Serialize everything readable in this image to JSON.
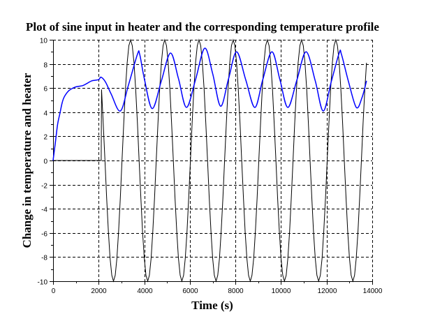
{
  "chart_data": {
    "type": "line",
    "title": "Plot of sine input in heater and the corresponding temperature profile",
    "xlabel": "Time (s)",
    "ylabel": "Change in temperature and heater",
    "xlim": [
      0,
      14000
    ],
    "ylim": [
      -10,
      10
    ],
    "xticks": [
      "0",
      "2000",
      "4000",
      "6000",
      "8000",
      "10000",
      "12000",
      "14000"
    ],
    "yticks": [
      "-10",
      "-8",
      "-6",
      "-4",
      "-2",
      "0",
      "2",
      "4",
      "6",
      "8",
      "10"
    ],
    "grid": true,
    "series": [
      {
        "color": "#000000",
        "t": [
          0,
          2110,
          2125,
          2200,
          2275,
          2350,
          2425,
          2500,
          2575,
          2650,
          2725,
          2800,
          2875,
          2950,
          3025,
          3100,
          3175,
          3250,
          3325,
          3400,
          3475,
          3550,
          3625,
          3700,
          3775,
          3850,
          3925,
          4000,
          4075,
          4150,
          4225,
          4300,
          4375,
          4450,
          4525,
          4600,
          4675,
          4750,
          4825,
          4900,
          4975,
          5050,
          5125,
          5200,
          5275,
          5350,
          5425,
          5500,
          5575,
          5650,
          5725,
          5800,
          5875,
          5950,
          6025,
          6100,
          6175,
          6250,
          6325,
          6400,
          6475,
          6550,
          6625,
          6700,
          6775,
          6850,
          6925,
          7000,
          7075,
          7150,
          7225,
          7300,
          7375,
          7450,
          7525,
          7600,
          7675,
          7750,
          7825,
          7900,
          7975,
          8050,
          8125,
          8200,
          8275,
          8350,
          8425,
          8500,
          8575,
          8650,
          8725,
          8800,
          8875,
          8950,
          9025,
          9100,
          9175,
          9250,
          9325,
          9400,
          9475,
          9550,
          9625,
          9700,
          9775,
          9850,
          9925,
          10000,
          10075,
          10150,
          10225,
          10300,
          10375,
          10450,
          10525,
          10600,
          10675,
          10750,
          10825,
          10900,
          10975,
          11050,
          11125,
          11200,
          11275,
          11350,
          11425,
          11500,
          11575,
          11650,
          11725,
          11800,
          11875,
          11950,
          12025,
          12100,
          12175,
          12250,
          12325,
          12400,
          12475,
          12550,
          12625,
          12700,
          12775,
          12850,
          12925,
          13000,
          13075,
          13150,
          13225,
          13300,
          13375,
          13450,
          13525,
          13600,
          13675,
          13750
        ],
        "values": [
          0,
          0,
          5.88,
          3.09,
          0,
          -3.09,
          -5.88,
          -8.09,
          -9.51,
          -10,
          -9.51,
          -8.09,
          -5.88,
          -3.09,
          0,
          3.09,
          5.88,
          8.09,
          9.51,
          10,
          9.51,
          8.09,
          5.88,
          3.09,
          0,
          -3.09,
          -5.88,
          -8.09,
          -9.51,
          -10,
          -9.51,
          -8.09,
          -5.88,
          -3.09,
          0,
          3.09,
          5.88,
          8.09,
          9.51,
          10,
          9.51,
          8.09,
          5.88,
          3.09,
          0,
          -3.09,
          -5.88,
          -8.09,
          -9.51,
          -10,
          -9.51,
          -8.09,
          -5.88,
          -3.09,
          0,
          3.09,
          5.88,
          8.09,
          9.51,
          10,
          9.51,
          8.09,
          5.88,
          3.09,
          0,
          -3.09,
          -5.88,
          -8.09,
          -9.51,
          -10,
          -9.51,
          -8.09,
          -5.88,
          -3.09,
          0,
          3.09,
          5.88,
          8.09,
          9.51,
          10,
          9.51,
          8.09,
          5.88,
          3.09,
          0,
          -3.09,
          -5.88,
          -8.09,
          -9.51,
          -10,
          -9.51,
          -8.09,
          -5.88,
          -3.09,
          0,
          3.09,
          5.88,
          8.09,
          9.51,
          10,
          9.51,
          8.09,
          5.88,
          3.09,
          0,
          -3.09,
          -5.88,
          -8.09,
          -9.51,
          -10,
          -9.51,
          -8.09,
          -5.88,
          -3.09,
          0,
          3.09,
          5.88,
          8.09,
          9.51,
          10,
          9.51,
          8.09,
          5.88,
          3.09,
          0,
          -3.09,
          -5.88,
          -8.09,
          -9.51,
          -10,
          -9.51,
          -8.09,
          -5.88,
          -3.09,
          0,
          3.09,
          5.88,
          8.09,
          9.51,
          10,
          9.51,
          8.09,
          5.88,
          3.09,
          0,
          -3.09,
          -5.88,
          -8.09,
          -9.51,
          -10,
          -9.51,
          -8.09,
          -5.88,
          -3.09,
          0,
          3.09,
          5.88,
          8.09
        ]
      },
      {
        "color": "#0000ff",
        "t": [
          0,
          100,
          200,
          300,
          400,
          500,
          700,
          1000,
          1300,
          1500,
          1700,
          2000,
          2100,
          2300,
          2550,
          2950,
          3300,
          3700,
          3800,
          4000,
          4350,
          4750,
          5150,
          5500,
          5850,
          6250,
          6650,
          7000,
          7350,
          7700,
          8050,
          8450,
          8850,
          9200,
          9600,
          9950,
          10300,
          10700,
          11100,
          11500,
          11850,
          12200,
          12550,
          12650,
          12950,
          13300,
          13550,
          13750
        ],
        "values": [
          0,
          1.5,
          3,
          3.9,
          4.8,
          5.3,
          5.8,
          6.1,
          6.2,
          6.4,
          6.6,
          6.7,
          6.9,
          6.5,
          5.5,
          4.1,
          6.2,
          8.8,
          8.8,
          6.8,
          4.3,
          6.6,
          8.9,
          6.8,
          4.4,
          6.7,
          9.3,
          7.2,
          4.5,
          6.8,
          9.0,
          6.7,
          4.4,
          6.7,
          9.0,
          6.7,
          4.4,
          6.7,
          9.0,
          6.6,
          4.1,
          6.5,
          8.9,
          8.8,
          6.6,
          4.4,
          5.2,
          6.6
        ]
      }
    ]
  }
}
